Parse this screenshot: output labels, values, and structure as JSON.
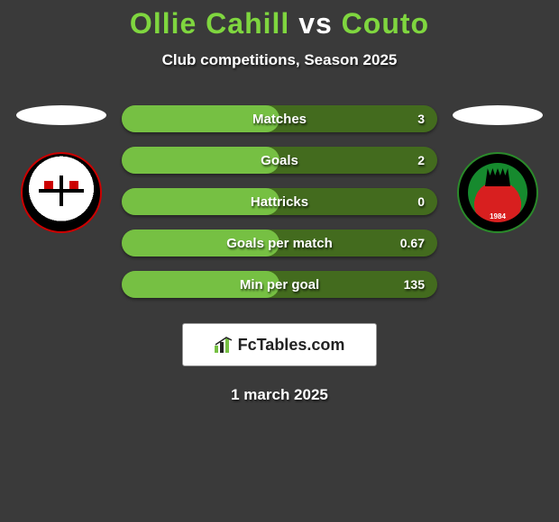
{
  "title": {
    "player1": "Ollie Cahill",
    "vs": "vs",
    "player2": "Couto",
    "player_color": "#7fd63f",
    "vs_color": "#ffffff",
    "fontsize": 32
  },
  "subtitle": "Club competitions, Season 2025",
  "date": "1 march 2025",
  "logo_text": "FcTables.com",
  "colors": {
    "background": "#3a3a3a",
    "bar_fill": "#76c043",
    "bar_track": "#436b1e",
    "text": "#ffffff",
    "ellipse": "#ffffff"
  },
  "stats": [
    {
      "label": "Matches",
      "value": "3",
      "fill_pct": 50
    },
    {
      "label": "Goals",
      "value": "2",
      "fill_pct": 50
    },
    {
      "label": "Hattricks",
      "value": "0",
      "fill_pct": 50
    },
    {
      "label": "Goals per match",
      "value": "0.67",
      "fill_pct": 50
    },
    {
      "label": "Min per goal",
      "value": "135",
      "fill_pct": 50
    }
  ],
  "crests": {
    "left": {
      "name": "bohemian-fc",
      "ring_color": "#000000",
      "accent": "#c00000"
    },
    "right": {
      "name": "cork-city",
      "ring_color": "#168a2e",
      "accent": "#d81f1f",
      "year": "1984"
    }
  }
}
